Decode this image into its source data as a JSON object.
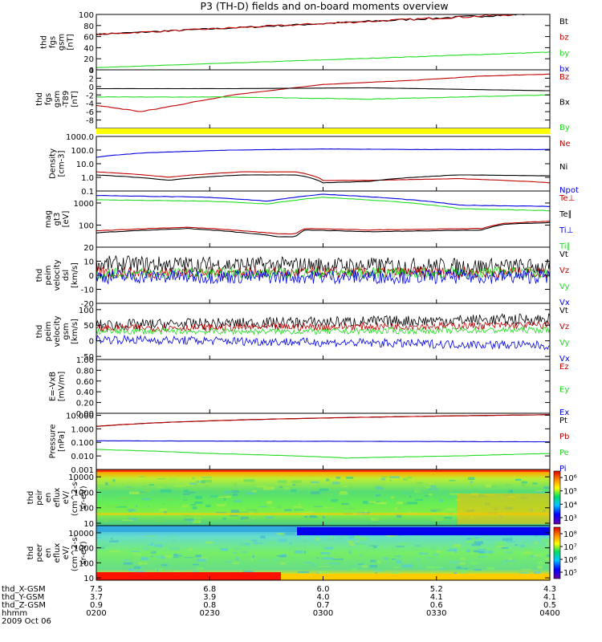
{
  "title": "P3 (TH-D) fields and on-board moments overview",
  "time": {
    "ticks": [
      "0200",
      "0230",
      "0300",
      "0330",
      "0400"
    ],
    "rows": [
      {
        "label": "thd_X-GSM",
        "values": [
          "7.5",
          "6.8",
          "6.0",
          "5.2",
          "4.3"
        ]
      },
      {
        "label": "thd_Y-GSM",
        "values": [
          "3.7",
          "3.9",
          "4.0",
          "4.1",
          "4.1"
        ]
      },
      {
        "label": "thd_Z-GSM",
        "values": [
          "0.9",
          "0.8",
          "0.7",
          "0.6",
          "0.5"
        ]
      },
      {
        "label": "hhmm",
        "values": [
          "0200",
          "0230",
          "0300",
          "0330",
          "0400"
        ]
      }
    ],
    "date": "2009 Oct 06"
  },
  "colors": {
    "black": "#000000",
    "red": "#c00000",
    "green": "#22dd22",
    "blue": "#0000e0",
    "yellow": "#ffff00"
  },
  "chart_data": [
    {
      "type": "line",
      "ylabel": [
        "thd",
        "fgs",
        "gsm",
        "[nT]"
      ],
      "ylim": [
        0,
        100
      ],
      "yticks": [
        "0",
        "20",
        "40",
        "60",
        "80",
        "100"
      ],
      "series": [
        {
          "name": "Bt",
          "color": "#000000",
          "x": [
            0,
            1
          ],
          "y": [
            64,
            103
          ]
        },
        {
          "name": "bz",
          "color": "#c00000",
          "x": [
            0,
            1
          ],
          "y": [
            64,
            103
          ]
        },
        {
          "name": "by",
          "color": "#22dd22",
          "x": [
            0,
            1
          ],
          "y": [
            4,
            32
          ]
        },
        {
          "name": "bx",
          "color": "#0000e0",
          "x": [
            0,
            1
          ],
          "y": [
            -1,
            -1
          ]
        }
      ]
    },
    {
      "type": "line",
      "ylabel": [
        "thd",
        "fgs",
        "gsm",
        "-T89",
        "[nT]"
      ],
      "ylim": [
        -10,
        4
      ],
      "yticks": [
        "-8",
        "-6",
        "-4",
        "-2",
        "0",
        "2",
        "4"
      ],
      "series": [
        {
          "name": "Bz",
          "color": "#c00000",
          "x": [
            0,
            0.1,
            0.3,
            0.5,
            0.7,
            0.85,
            1
          ],
          "y": [
            -4.5,
            -6,
            -2,
            0.5,
            1.5,
            2.5,
            3
          ]
        },
        {
          "name": "Bx",
          "color": "#000000",
          "x": [
            0,
            0.3,
            0.6,
            1
          ],
          "y": [
            -0.5,
            -0.5,
            -0.3,
            -1
          ]
        },
        {
          "name": "By",
          "color": "#22dd22",
          "x": [
            0,
            0.3,
            0.6,
            1
          ],
          "y": [
            -2.5,
            -2.5,
            -3,
            -2
          ]
        }
      ]
    },
    {
      "type": "line",
      "ylabel": [
        "Density",
        "[cm-3]"
      ],
      "ylim": [
        0.1,
        1000
      ],
      "scale": "log",
      "yticks": [
        "0.1",
        "1.0",
        "10.0",
        "100.0",
        "1000.0"
      ],
      "series": [
        {
          "name": "Ne",
          "color": "#c00000",
          "x": [
            0,
            0.16,
            0.32,
            0.44,
            0.5,
            0.6,
            0.8,
            1
          ],
          "y": [
            2.5,
            1.0,
            2.5,
            2.5,
            0.6,
            0.6,
            0.8,
            0.4
          ]
        },
        {
          "name": "Ni",
          "color": "#000000",
          "x": [
            0,
            0.16,
            0.32,
            0.44,
            0.5,
            0.6,
            0.8,
            1
          ],
          "y": [
            1.5,
            0.6,
            1.5,
            1.5,
            0.4,
            0.5,
            1.5,
            1.3
          ]
        },
        {
          "name": "Npot",
          "color": "#0000e0",
          "x": [
            0,
            0.1,
            0.3,
            0.5,
            0.7,
            1
          ],
          "y": [
            30,
            60,
            100,
            120,
            110,
            110
          ]
        }
      ]
    },
    {
      "type": "line",
      "ylabel": [
        "mag",
        "gt3",
        "[eV]"
      ],
      "ylim": [
        10,
        3500
      ],
      "scale": "log",
      "yticks": [
        "100",
        "1000"
      ],
      "series": [
        {
          "name": "Te⊥",
          "color": "#c00000",
          "x": [
            0,
            0.2,
            0.4,
            0.44,
            0.46,
            0.6,
            0.85,
            0.9,
            1
          ],
          "y": [
            55,
            80,
            40,
            40,
            70,
            60,
            70,
            120,
            150
          ]
        },
        {
          "name": "Te∥",
          "color": "#000000",
          "x": [
            0,
            0.2,
            0.4,
            0.44,
            0.46,
            0.6,
            0.85,
            0.9,
            1
          ],
          "y": [
            45,
            70,
            30,
            30,
            60,
            50,
            60,
            110,
            130
          ]
        },
        {
          "name": "Ti⊥",
          "color": "#0000e0",
          "x": [
            0,
            0.25,
            0.38,
            0.5,
            0.62,
            0.8,
            1
          ],
          "y": [
            2200,
            1800,
            1200,
            2500,
            1800,
            800,
            700
          ]
        },
        {
          "name": "Ti∥",
          "color": "#22dd22",
          "x": [
            0,
            0.25,
            0.38,
            0.5,
            0.62,
            0.8,
            1
          ],
          "y": [
            1400,
            1200,
            900,
            1800,
            1300,
            550,
            450
          ]
        }
      ]
    },
    {
      "type": "line",
      "ylabel": [
        "thd",
        "peim",
        "velocity",
        "dsl",
        "[km/s]"
      ],
      "ylim": [
        -20,
        20
      ],
      "yticks": [
        "-20",
        "-10",
        "0",
        "10",
        "20"
      ],
      "series": [
        {
          "name": "Vt",
          "color": "#000000",
          "x": [
            0,
            1
          ],
          "y": [
            8,
            6
          ],
          "noise": 6
        },
        {
          "name": "Vz",
          "color": "#c00000",
          "x": [
            0,
            1
          ],
          "y": [
            2,
            2
          ],
          "noise": 4
        },
        {
          "name": "Vy",
          "color": "#22dd22",
          "x": [
            0,
            1
          ],
          "y": [
            1,
            2
          ],
          "noise": 4
        },
        {
          "name": "Vx",
          "color": "#0000e0",
          "x": [
            0,
            1
          ],
          "y": [
            -1,
            -1
          ],
          "noise": 5
        }
      ]
    },
    {
      "type": "line",
      "ylabel": [
        "thd",
        "peim",
        "velocity",
        "gsm",
        "[km/s]"
      ],
      "ylim": [
        -60,
        120
      ],
      "yticks": [
        "-50",
        "0",
        "50",
        "100"
      ],
      "series": [
        {
          "name": "Vt",
          "color": "#000000",
          "x": [
            0,
            0.5,
            1
          ],
          "y": [
            50,
            60,
            70
          ],
          "noise": 18
        },
        {
          "name": "Vz",
          "color": "#c00000",
          "x": [
            0,
            0.5,
            1
          ],
          "y": [
            40,
            45,
            50
          ],
          "noise": 12
        },
        {
          "name": "Vy",
          "color": "#22dd22",
          "x": [
            0,
            0.5,
            1
          ],
          "y": [
            30,
            30,
            35
          ],
          "noise": 10
        },
        {
          "name": "Vx",
          "color": "#0000e0",
          "x": [
            0,
            0.5,
            1
          ],
          "y": [
            5,
            -5,
            -15
          ],
          "noise": 14
        }
      ]
    },
    {
      "type": "line",
      "ylabel": [
        "E=-VxB",
        "[mV/m]"
      ],
      "ylim": [
        0,
        1
      ],
      "yticks": [
        "0.00",
        "0.20",
        "0.40",
        "0.60",
        "0.80",
        "1.00"
      ],
      "series": [
        {
          "name": "Ez",
          "color": "#c00000",
          "x": [],
          "y": []
        },
        {
          "name": "Ey",
          "color": "#22dd22",
          "x": [],
          "y": []
        },
        {
          "name": "Ex",
          "color": "#0000e0",
          "x": [],
          "y": []
        }
      ]
    },
    {
      "type": "line",
      "ylabel": [
        "Pressure",
        "[nPa]"
      ],
      "ylim": [
        0.001,
        14
      ],
      "scale": "log",
      "yticks": [
        "0.001",
        "0.010",
        "0.100",
        "1.000",
        "10.000"
      ],
      "series": [
        {
          "name": "Pt",
          "color": "#000000",
          "x": [
            0,
            1
          ],
          "y": [
            1.5,
            11
          ]
        },
        {
          "name": "Pb",
          "color": "#c00000",
          "x": [
            0,
            1
          ],
          "y": [
            1.5,
            11
          ]
        },
        {
          "name": "Pe",
          "color": "#22dd22",
          "x": [
            0,
            0.25,
            0.55,
            0.8,
            1
          ],
          "y": [
            0.03,
            0.015,
            0.007,
            0.01,
            0.015
          ]
        },
        {
          "name": "Pi",
          "color": "#0000e0",
          "x": [
            0,
            1
          ],
          "y": [
            0.13,
            0.11
          ]
        }
      ]
    },
    {
      "type": "heatmap",
      "ylabel": [
        "thd",
        "peir",
        "en",
        "eflux",
        "eV/",
        "(cm^2-s-",
        "sr-eV)"
      ],
      "ylim": [
        7,
        30000
      ],
      "scale": "log",
      "yticks": [
        "10",
        "100",
        "1000",
        "10000"
      ],
      "colorbar": [
        "10³",
        "10⁴",
        "10⁵",
        "10⁶"
      ]
    },
    {
      "type": "heatmap",
      "ylabel": [
        "thd",
        "peer",
        "en",
        "eflux",
        "eV/",
        "(cm^2-s-",
        "sr-eV)"
      ],
      "ylim": [
        7,
        30000
      ],
      "scale": "log",
      "yticks": [
        "10",
        "100",
        "1000",
        "10000"
      ],
      "colorbar": [
        "10⁵",
        "10⁶",
        "10⁷",
        "10⁸"
      ]
    }
  ]
}
